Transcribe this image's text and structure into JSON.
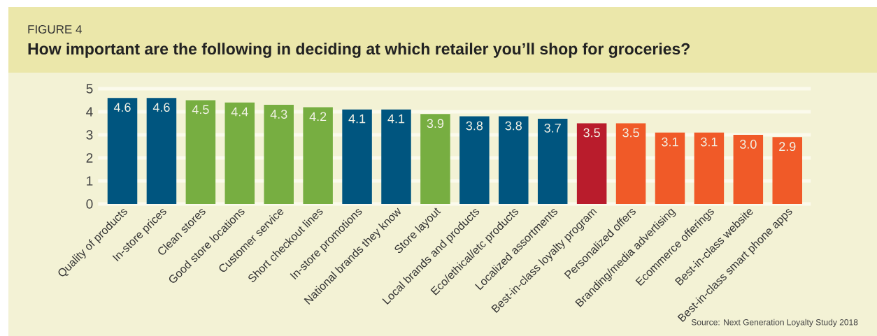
{
  "chart_data": {
    "type": "bar",
    "subtitle": "FIGURE 4",
    "title": "How important are the following in deciding at which retailer you’ll shop for groceries?",
    "categories": [
      "Quality of products",
      "In-store prices",
      "Clean stores",
      "Good store locations",
      "Customer service",
      "Short checkout lines",
      "In-store promotions",
      "National brands they know",
      "Store layout",
      "Local brands and products",
      "Eco/ethical/etc products",
      "Localized assortments",
      "Best-in-class loyalty program",
      "Personalized offers",
      "Branding/media advertising",
      "Ecommerce offerings",
      "Best-in-class website",
      "Best-in-class smart phone apps"
    ],
    "values": [
      4.6,
      4.6,
      4.5,
      4.4,
      4.3,
      4.2,
      4.1,
      4.1,
      3.9,
      3.8,
      3.8,
      3.7,
      3.5,
      3.5,
      3.1,
      3.1,
      3.0,
      2.9
    ],
    "value_labels": [
      "4.6",
      "4.6",
      "4.5",
      "4.4",
      "4.3",
      "4.2",
      "4.1",
      "4.1",
      "3.9",
      "3.8",
      "3.8",
      "3.7",
      "3.5",
      "3.5",
      "3.1",
      "3.1",
      "3.0",
      "2.9"
    ],
    "colors": [
      "#00557f",
      "#00557f",
      "#77ae41",
      "#77ae41",
      "#77ae41",
      "#77ae41",
      "#00557f",
      "#00557f",
      "#77ae41",
      "#00557f",
      "#00557f",
      "#00557f",
      "#b91c2c",
      "#f05a28",
      "#f05a28",
      "#f05a28",
      "#f05a28",
      "#f05a28"
    ],
    "ylim": [
      0,
      5
    ],
    "yticks": [
      0,
      1,
      2,
      3,
      4,
      5
    ],
    "grid": "y",
    "annotations": [
      "Source: Next Generation Loyalty Study 2018"
    ]
  }
}
